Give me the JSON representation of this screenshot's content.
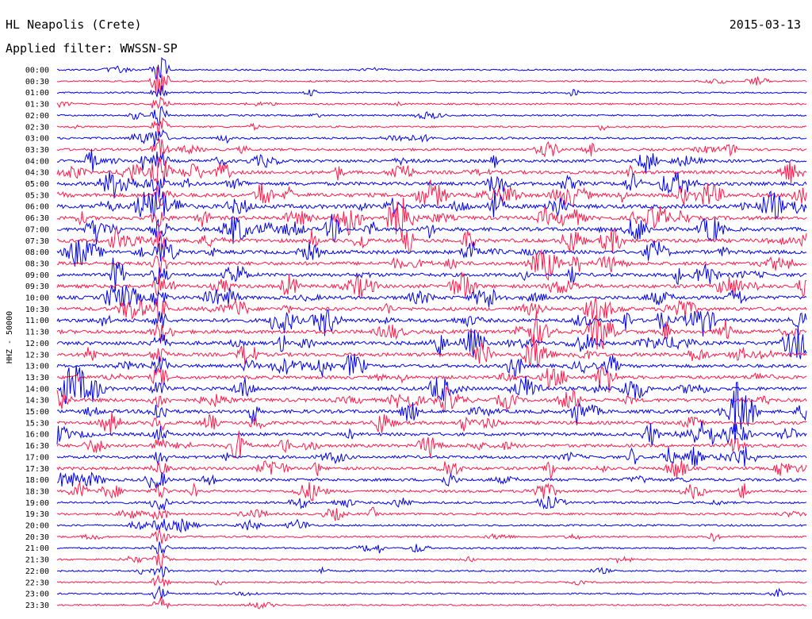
{
  "header": {
    "station": "HL Neapolis (Crete)",
    "date": "2015-03-13",
    "filter": "Applied filter: WWSSN-SP"
  },
  "chart_data": {
    "type": "line",
    "title": "HL Neapolis (Crete)",
    "subtitle": "Applied filter: WWSSN-SP",
    "ylabel": "HHZ - 50000",
    "xlabel": "",
    "grid": false,
    "trace_colors": [
      "#0000ee",
      "#ff1a4a"
    ],
    "rows": [
      "00:00",
      "00:30",
      "01:00",
      "01:30",
      "02:00",
      "02:30",
      "03:00",
      "03:30",
      "04:00",
      "04:30",
      "05:00",
      "05:30",
      "06:00",
      "06:30",
      "07:00",
      "07:30",
      "08:00",
      "08:30",
      "09:00",
      "09:30",
      "10:00",
      "10:30",
      "11:00",
      "11:30",
      "12:00",
      "12:30",
      "13:00",
      "13:30",
      "14:00",
      "14:30",
      "15:00",
      "15:30",
      "16:00",
      "16:30",
      "17:00",
      "17:30",
      "18:00",
      "18:30",
      "19:00",
      "19:30",
      "20:00",
      "20:30",
      "21:00",
      "21:30",
      "22:00",
      "22:30",
      "23:00",
      "23:30"
    ],
    "noise_level": [
      0.6,
      0.6,
      0.5,
      0.7,
      0.7,
      0.8,
      1.2,
      1.6,
      2.2,
      2.6,
      2.8,
      3.2,
      3.4,
      3.2,
      3.0,
      3.0,
      3.0,
      2.8,
      2.8,
      2.8,
      2.8,
      2.8,
      3.0,
      3.0,
      3.0,
      2.8,
      2.6,
      2.6,
      2.8,
      2.8,
      2.8,
      2.6,
      2.4,
      2.4,
      2.2,
      2.2,
      2.0,
      1.8,
      1.4,
      1.2,
      1.0,
      0.9,
      0.8,
      0.8,
      0.7,
      0.6,
      0.6,
      0.6
    ],
    "large_event": {
      "start_row": 0,
      "end_row": 47,
      "x_fraction": 0.137
    }
  }
}
